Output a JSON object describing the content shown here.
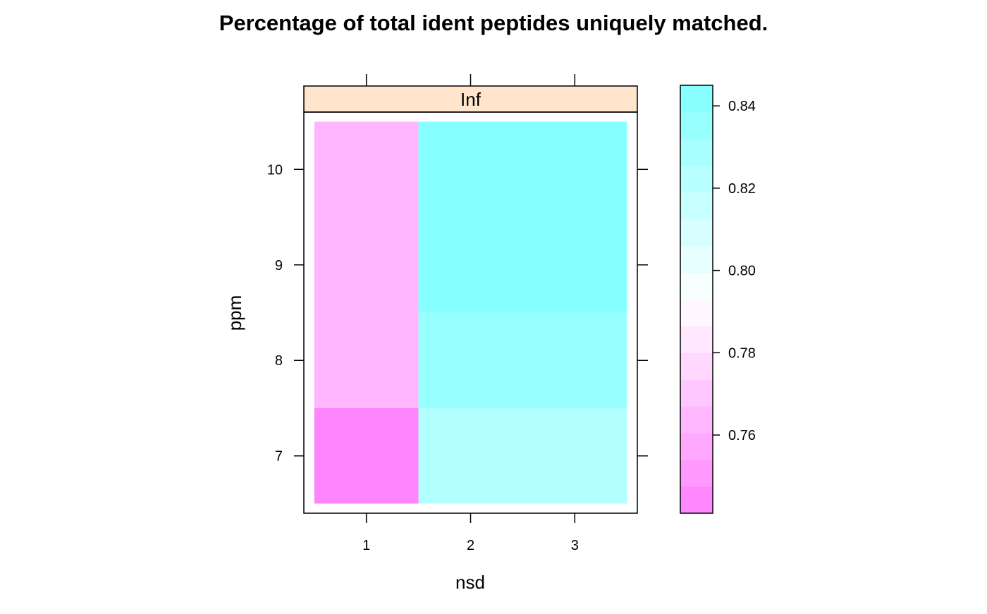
{
  "chart_data": {
    "type": "heatmap",
    "title": "Percentage of total ident peptides uniquely matched.",
    "xlabel": "nsd",
    "ylabel": "ppm",
    "panel_label": "Inf",
    "x_ticks": [
      1,
      2,
      3
    ],
    "y_ticks": [
      7,
      8,
      9,
      10
    ],
    "xlim": [
      0.4,
      3.6
    ],
    "ylim": [
      6.4,
      10.6
    ],
    "cells": [
      {
        "nsd": 1,
        "ppm_from": 6.5,
        "ppm_to": 7.5,
        "value": 0.743
      },
      {
        "nsd": 1,
        "ppm_from": 7.5,
        "ppm_to": 10.5,
        "value": 0.763
      },
      {
        "nsd": [
          2,
          3
        ],
        "ppm_from": 6.5,
        "ppm_to": 7.5,
        "value": 0.825
      },
      {
        "nsd": [
          2,
          3
        ],
        "ppm_from": 7.5,
        "ppm_to": 8.5,
        "value": 0.835
      },
      {
        "nsd": [
          2,
          3
        ],
        "ppm_from": 8.5,
        "ppm_to": 10.5,
        "value": 0.843
      }
    ],
    "colorkey": {
      "range": [
        0.741,
        0.845
      ],
      "ticks": [
        0.76,
        0.78,
        0.8,
        0.82,
        0.84
      ],
      "tick_labels": [
        "0.76",
        "0.78",
        "0.80",
        "0.82",
        "0.84"
      ],
      "low_color": "#ff80ff",
      "mid_color": "#ffffff",
      "high_color": "#80ffff"
    },
    "strip_color": "#ffe5cc",
    "grid": false,
    "legend_position": "right"
  }
}
